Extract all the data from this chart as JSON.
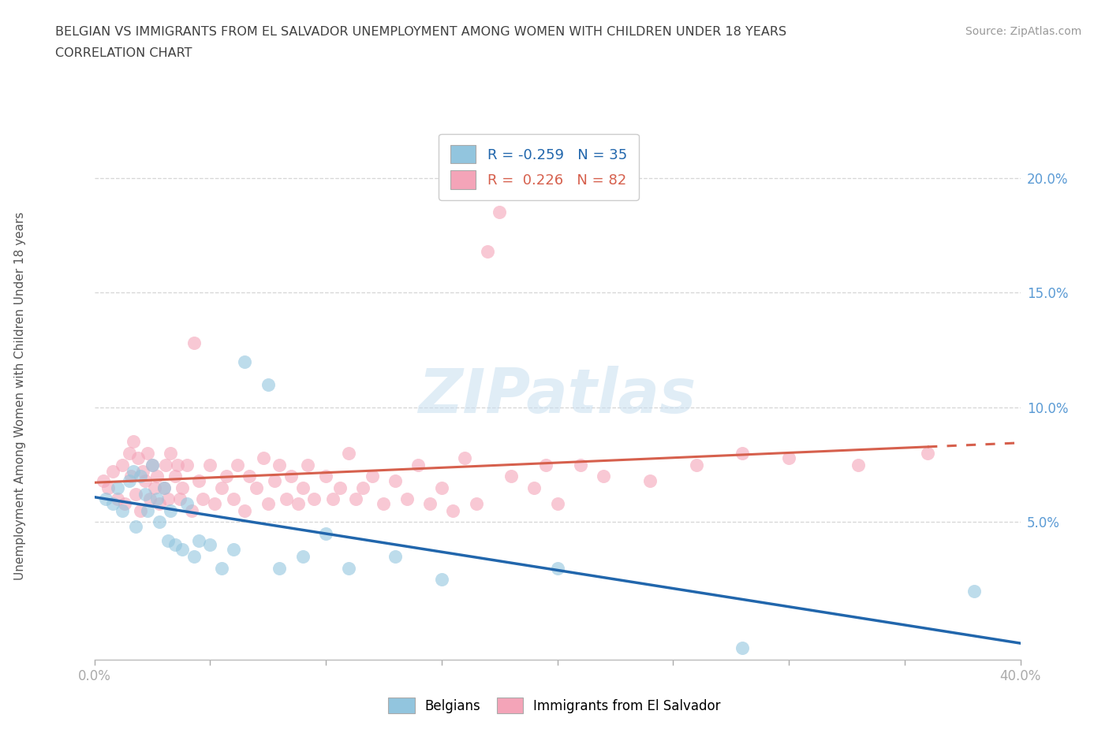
{
  "title_line1": "BELGIAN VS IMMIGRANTS FROM EL SALVADOR UNEMPLOYMENT AMONG WOMEN WITH CHILDREN UNDER 18 YEARS",
  "title_line2": "CORRELATION CHART",
  "source_text": "Source: ZipAtlas.com",
  "ylabel": "Unemployment Among Women with Children Under 18 years",
  "xlim": [
    0.0,
    0.4
  ],
  "ylim": [
    -0.01,
    0.22
  ],
  "xticks": [
    0.0,
    0.05,
    0.1,
    0.15,
    0.2,
    0.25,
    0.3,
    0.35,
    0.4
  ],
  "ytick_vals": [
    0.0,
    0.05,
    0.1,
    0.15,
    0.2
  ],
  "ytick_labels_right": [
    "",
    "5.0%",
    "10.0%",
    "15.0%",
    "20.0%"
  ],
  "watermark": "ZIPatlas",
  "belgian_color": "#92c5de",
  "salvador_color": "#f4a4b8",
  "belgian_line_color": "#2166ac",
  "salvador_line_color": "#d6604d",
  "R_belgian": -0.259,
  "N_belgian": 35,
  "R_salvador": 0.226,
  "N_salvador": 82,
  "belgian_scatter_x": [
    0.005,
    0.008,
    0.01,
    0.012,
    0.015,
    0.017,
    0.018,
    0.02,
    0.022,
    0.023,
    0.025,
    0.027,
    0.028,
    0.03,
    0.032,
    0.033,
    0.035,
    0.038,
    0.04,
    0.043,
    0.045,
    0.05,
    0.055,
    0.06,
    0.065,
    0.075,
    0.08,
    0.09,
    0.1,
    0.11,
    0.13,
    0.15,
    0.2,
    0.28,
    0.38
  ],
  "belgian_scatter_y": [
    0.06,
    0.058,
    0.065,
    0.055,
    0.068,
    0.072,
    0.048,
    0.07,
    0.062,
    0.055,
    0.075,
    0.06,
    0.05,
    0.065,
    0.042,
    0.055,
    0.04,
    0.038,
    0.058,
    0.035,
    0.042,
    0.04,
    0.03,
    0.038,
    0.12,
    0.11,
    0.03,
    0.035,
    0.045,
    0.03,
    0.035,
    0.025,
    0.03,
    -0.005,
    0.02
  ],
  "salvador_scatter_x": [
    0.004,
    0.006,
    0.008,
    0.01,
    0.012,
    0.013,
    0.015,
    0.016,
    0.017,
    0.018,
    0.019,
    0.02,
    0.021,
    0.022,
    0.023,
    0.024,
    0.025,
    0.026,
    0.027,
    0.028,
    0.03,
    0.031,
    0.032,
    0.033,
    0.035,
    0.036,
    0.037,
    0.038,
    0.04,
    0.042,
    0.043,
    0.045,
    0.047,
    0.05,
    0.052,
    0.055,
    0.057,
    0.06,
    0.062,
    0.065,
    0.067,
    0.07,
    0.073,
    0.075,
    0.078,
    0.08,
    0.083,
    0.085,
    0.088,
    0.09,
    0.092,
    0.095,
    0.1,
    0.103,
    0.106,
    0.11,
    0.113,
    0.116,
    0.12,
    0.125,
    0.13,
    0.135,
    0.14,
    0.145,
    0.15,
    0.155,
    0.16,
    0.165,
    0.17,
    0.175,
    0.18,
    0.19,
    0.195,
    0.2,
    0.21,
    0.22,
    0.24,
    0.26,
    0.28,
    0.3,
    0.33,
    0.36
  ],
  "salvador_scatter_y": [
    0.068,
    0.065,
    0.072,
    0.06,
    0.075,
    0.058,
    0.08,
    0.07,
    0.085,
    0.062,
    0.078,
    0.055,
    0.072,
    0.068,
    0.08,
    0.06,
    0.075,
    0.065,
    0.07,
    0.058,
    0.065,
    0.075,
    0.06,
    0.08,
    0.07,
    0.075,
    0.06,
    0.065,
    0.075,
    0.055,
    0.128,
    0.068,
    0.06,
    0.075,
    0.058,
    0.065,
    0.07,
    0.06,
    0.075,
    0.055,
    0.07,
    0.065,
    0.078,
    0.058,
    0.068,
    0.075,
    0.06,
    0.07,
    0.058,
    0.065,
    0.075,
    0.06,
    0.07,
    0.06,
    0.065,
    0.08,
    0.06,
    0.065,
    0.07,
    0.058,
    0.068,
    0.06,
    0.075,
    0.058,
    0.065,
    0.055,
    0.078,
    0.058,
    0.168,
    0.185,
    0.07,
    0.065,
    0.075,
    0.058,
    0.075,
    0.07,
    0.068,
    0.075,
    0.08,
    0.078,
    0.075,
    0.08
  ],
  "background_color": "#ffffff",
  "grid_color": "#cccccc",
  "title_color": "#404040",
  "axis_label_color": "#555555",
  "tick_color": "#5b9bd5"
}
